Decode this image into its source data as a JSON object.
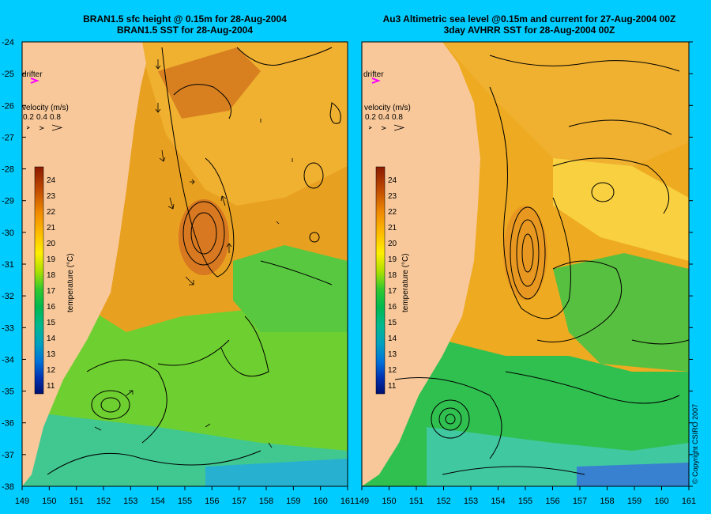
{
  "left_panel": {
    "title_line1": "BRAN1.5 sfc height @ 0.15m for 28-Aug-2004",
    "title_line2": "BRAN1.5 SST for 28-Aug-2004"
  },
  "right_panel": {
    "title_line1": "Au3 Altimetric sea level  @0.15m and current for 27-Aug-2004 00Z",
    "title_line2": "3day AVHRR SST for 28-Aug-2004 00Z"
  },
  "overlay": {
    "drifter_label": "drifter",
    "velocity_label": "velocity (m/s)",
    "velocity_scale": [
      "0.2",
      "0.4",
      "0.8"
    ],
    "colorbar_label": "temperature (°C)",
    "colorbar_ticks": [
      "24",
      "23",
      "22",
      "21",
      "20",
      "19",
      "18",
      "17",
      "16",
      "15",
      "14",
      "13",
      "12",
      "11"
    ]
  },
  "axes": {
    "lon_ticks": [
      "149",
      "150",
      "151",
      "152",
      "153",
      "154",
      "155",
      "156",
      "157",
      "158",
      "159",
      "160",
      "161"
    ],
    "lat_ticks": [
      "-24",
      "-25",
      "-26",
      "-27",
      "-28",
      "-29",
      "-30",
      "-31",
      "-32",
      "-33",
      "-34",
      "-35",
      "-36",
      "-37",
      "-38"
    ],
    "lon_range": [
      149,
      161
    ],
    "lat_range": [
      -24,
      -38
    ]
  },
  "copyright": "© Copyright CSIRO 2007",
  "colors": {
    "background": "#00ccff",
    "land": "#f8c89a",
    "drifter": "#ff00ff"
  }
}
